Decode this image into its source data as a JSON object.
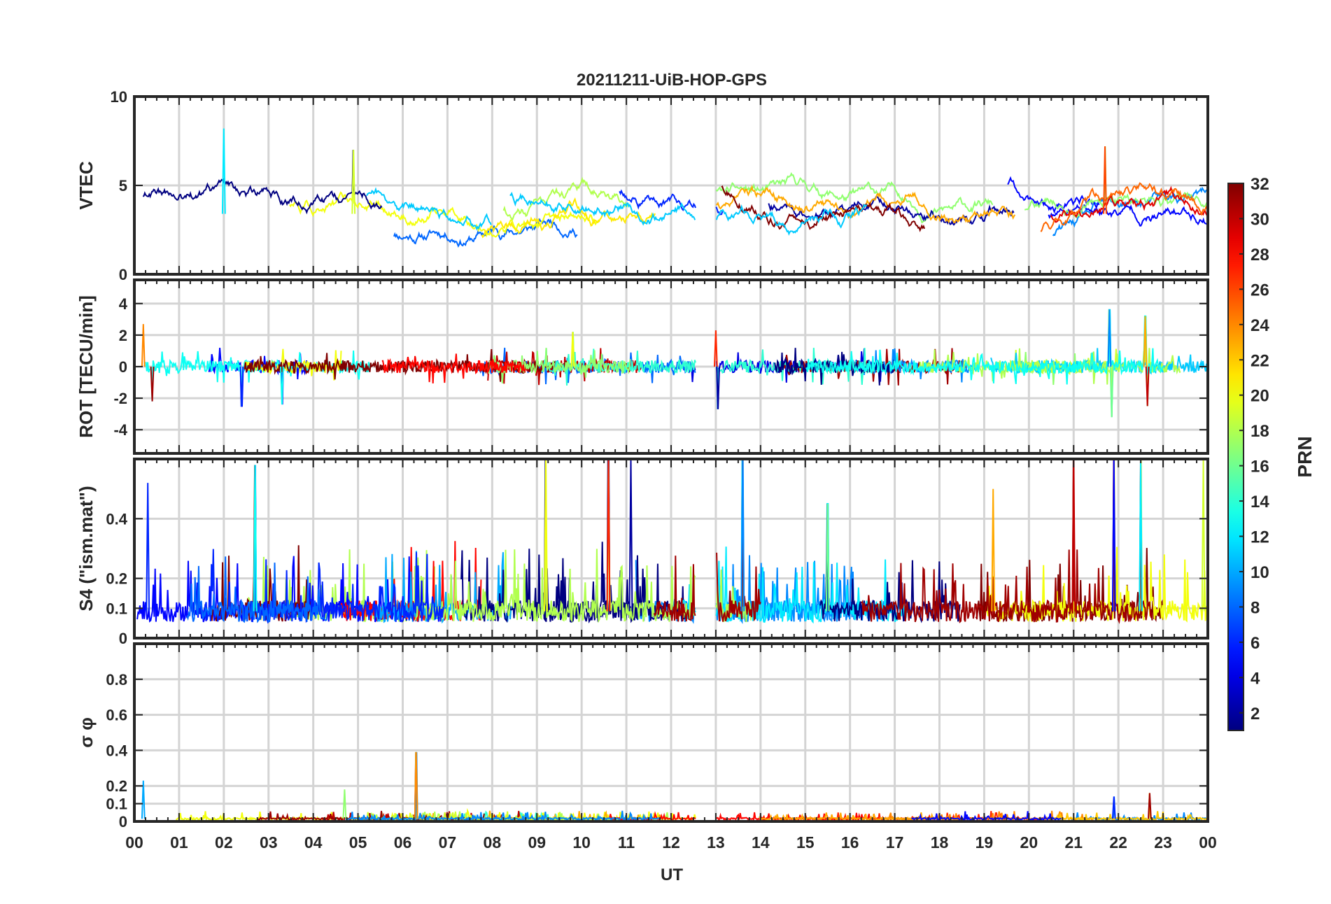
{
  "chart_data": {
    "type": "line",
    "title": "20211211-UiB-HOP-GPS",
    "xlabel": "UT",
    "x_tick_labels": [
      "00",
      "01",
      "02",
      "03",
      "04",
      "05",
      "06",
      "07",
      "08",
      "09",
      "10",
      "11",
      "12",
      "13",
      "14",
      "15",
      "16",
      "17",
      "18",
      "19",
      "20",
      "21",
      "22",
      "23",
      "00"
    ],
    "xlim": [
      0,
      24
    ],
    "data_gap": [
      12.55,
      13.0
    ],
    "grid": true,
    "colorbar": {
      "label": "PRN",
      "range": [
        1,
        32
      ],
      "colormap": "jet",
      "tick_labels": [
        "2",
        "4",
        "6",
        "8",
        "10",
        "12",
        "14",
        "16",
        "18",
        "20",
        "22",
        "24",
        "26",
        "28",
        "30",
        "32"
      ]
    },
    "panels": [
      {
        "id": "vtec",
        "ylabel": "VTEC",
        "ylim": [
          0,
          10
        ],
        "y_ticks": [
          0,
          5,
          10
        ],
        "y_tick_labels": [
          "0",
          "5",
          "10"
        ],
        "series_summary": "Per-PRN VTEC tracks mostly between 1 and 7 TECU; peak about 8.2 near 02 UT and 7.2 near 21:45 UT",
        "seed": 11,
        "baseline": 3.4,
        "amplitude": 1.6,
        "spikes": [
          [
            2.0,
            8.2
          ],
          [
            4.9,
            7.0
          ],
          [
            21.7,
            7.2
          ]
        ],
        "mode": "track"
      },
      {
        "id": "rot",
        "ylabel": "ROT [TECU/min]",
        "ylim": [
          -5.5,
          5.5
        ],
        "y_ticks": [
          -4,
          -2,
          0,
          2,
          4
        ],
        "y_tick_labels": [
          "-4",
          "-2",
          "0",
          "2",
          "4"
        ],
        "series_summary": "Rate of TEC fluctuates around 0; excursions up to about +3.6 and -3 near 21.8 UT and 22.6 UT",
        "seed": 23,
        "baseline": 0,
        "amplitude": 0.4,
        "spikes": [
          [
            0.2,
            2.7
          ],
          [
            0.4,
            -2.2
          ],
          [
            2.4,
            -2.5
          ],
          [
            3.3,
            -2.4
          ],
          [
            9.8,
            2.2
          ],
          [
            13.0,
            2.3
          ],
          [
            13.05,
            -2.7
          ],
          [
            21.8,
            3.6
          ],
          [
            21.85,
            -3.2
          ],
          [
            22.6,
            3.2
          ],
          [
            22.65,
            -2.5
          ]
        ],
        "mode": "noise"
      },
      {
        "id": "s4",
        "ylabel": "S4 (\"ism.mat\")",
        "ylim": [
          0,
          0.6
        ],
        "y_ticks": [
          0,
          0.1,
          0.2,
          0.4
        ],
        "y_tick_labels": [
          "0",
          "0.1",
          "0.2",
          "0.4"
        ],
        "series_summary": "S4 index mostly 0.05-0.2 with bursts up to 0.6 near 02.7, 09.2, 10.6-11.5, 13.6 and 21.2-23.9 UT",
        "seed": 37,
        "baseline": 0.09,
        "amplitude": 0.05,
        "spikes": [
          [
            0.3,
            0.52
          ],
          [
            2.7,
            0.58
          ],
          [
            9.2,
            0.6
          ],
          [
            10.6,
            0.6
          ],
          [
            11.1,
            0.6
          ],
          [
            13.6,
            0.6
          ],
          [
            15.5,
            0.45
          ],
          [
            19.2,
            0.5
          ],
          [
            21.0,
            0.6
          ],
          [
            21.9,
            0.6
          ],
          [
            22.5,
            0.6
          ],
          [
            23.9,
            0.6
          ]
        ],
        "mode": "positive"
      },
      {
        "id": "sigma",
        "ylabel": "σ φ",
        "ylim": [
          0,
          1
        ],
        "y_ticks": [
          0,
          0.1,
          0.2,
          0.4,
          0.6,
          0.8
        ],
        "y_tick_labels": [
          "0",
          "0.1",
          "0.2",
          "0.4",
          "0.6",
          "0.8"
        ],
        "series_summary": "Phase scintillation index sigma-phi mostly below 0.05; spike of about 0.39 near 06.3 UT",
        "seed": 41,
        "baseline": 0.015,
        "amplitude": 0.01,
        "spikes": [
          [
            0.2,
            0.23
          ],
          [
            4.7,
            0.18
          ],
          [
            6.3,
            0.39
          ],
          [
            22.7,
            0.16
          ],
          [
            21.9,
            0.14
          ]
        ],
        "mode": "positive"
      }
    ]
  }
}
